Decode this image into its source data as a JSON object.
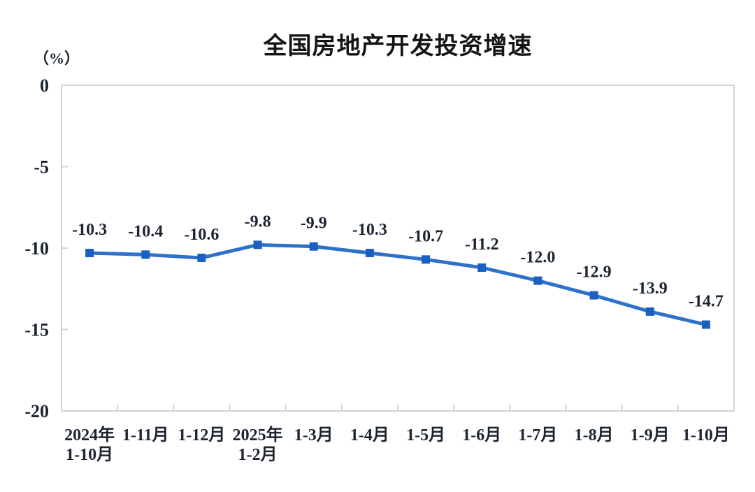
{
  "page": {
    "background": "#ffffff"
  },
  "chart_data": {
    "type": "line",
    "title": "全国房地产开发投资增速",
    "unit_label": "（%）",
    "categories": [
      "2024年\n1-10月",
      "1-11月",
      "1-12月",
      "2025年\n1-2月",
      "1-3月",
      "1-4月",
      "1-5月",
      "1-6月",
      "1-7月",
      "1-8月",
      "1-9月",
      "1-10月"
    ],
    "values": [
      -10.3,
      -10.4,
      -10.6,
      -9.8,
      -9.9,
      -10.3,
      -10.7,
      -11.2,
      -12.0,
      -12.9,
      -13.9,
      -14.7
    ],
    "data_labels": [
      "-10.3",
      "-10.4",
      "-10.6",
      "-9.8",
      "-9.9",
      "-10.3",
      "-10.7",
      "-11.2",
      "-12.0",
      "-12.9",
      "-13.9",
      "-14.7"
    ],
    "ylabel": "（%）",
    "xlabel": "",
    "ylim": [
      -20,
      0
    ],
    "yticks": [
      0,
      -5,
      -10,
      -15,
      -20
    ],
    "grid": false,
    "legend_position": "none",
    "line_color": "#2e71c8",
    "marker_color": "#1b5fc2",
    "marker_shape": "square",
    "axis_frame_color": "#d3d3d3",
    "label_color": "#1c2430",
    "title_color": "#151515"
  }
}
